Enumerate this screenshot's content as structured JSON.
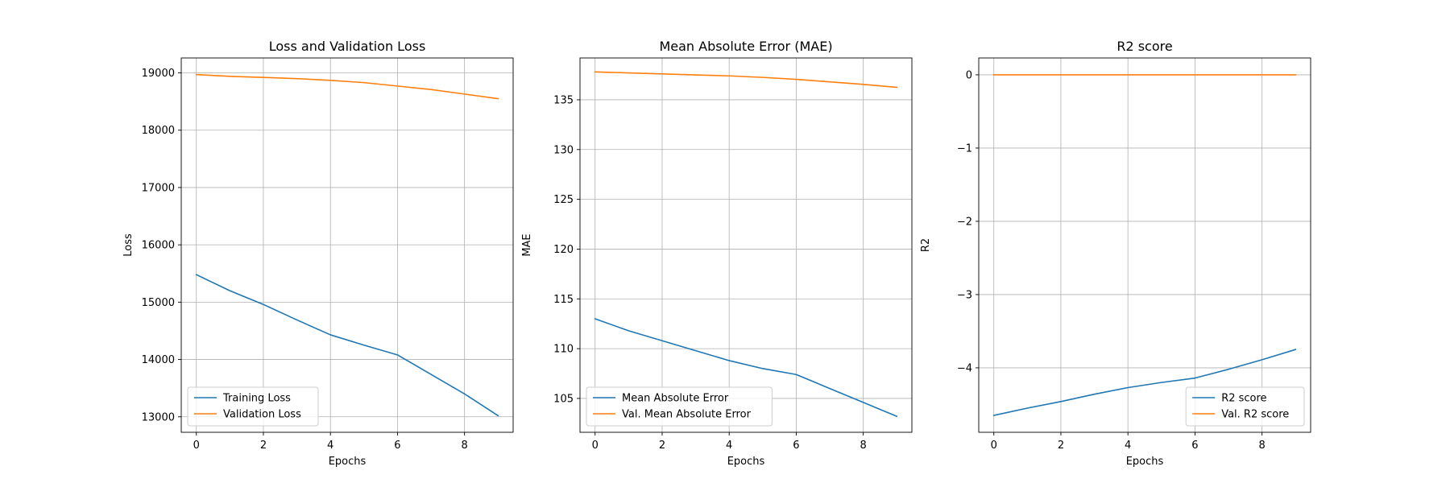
{
  "chart_data": [
    {
      "type": "line",
      "title": "Loss and Validation Loss",
      "xlabel": "Epochs",
      "ylabel": "Loss",
      "xlim": [
        -0.45,
        9.45
      ],
      "ylim": [
        12730,
        19260
      ],
      "xticks": [
        0,
        2,
        4,
        6,
        8
      ],
      "yticks": [
        13000,
        14000,
        15000,
        16000,
        17000,
        18000,
        19000
      ],
      "grid": true,
      "legend": "lower-left",
      "x": [
        0,
        1,
        2,
        3,
        4,
        5,
        6,
        7,
        8,
        9
      ],
      "series": [
        {
          "name": "Training Loss",
          "color": "#1f77b4",
          "values": [
            15480,
            15200,
            14960,
            14690,
            14430,
            14250,
            14080,
            13740,
            13400,
            13020
          ]
        },
        {
          "name": "Validation Loss",
          "color": "#ff7f0e",
          "values": [
            18970,
            18940,
            18920,
            18900,
            18870,
            18830,
            18770,
            18710,
            18630,
            18550
          ]
        }
      ]
    },
    {
      "type": "line",
      "title": "Mean Absolute Error (MAE)",
      "xlabel": "Epochs",
      "ylabel": "MAE",
      "xlim": [
        -0.45,
        9.45
      ],
      "ylim": [
        101.6,
        139.2
      ],
      "xticks": [
        0,
        2,
        4,
        6,
        8
      ],
      "yticks": [
        105,
        110,
        115,
        120,
        125,
        130,
        135
      ],
      "grid": true,
      "legend": "lower-left",
      "x": [
        0,
        1,
        2,
        3,
        4,
        5,
        6,
        7,
        8,
        9
      ],
      "series": [
        {
          "name": "Mean Absolute Error",
          "color": "#1f77b4",
          "values": [
            113.0,
            111.8,
            110.8,
            109.8,
            108.8,
            108.0,
            107.4,
            106.0,
            104.6,
            103.2
          ]
        },
        {
          "name": "Val. Mean Absolute Error",
          "color": "#ff7f0e",
          "values": [
            137.8,
            137.7,
            137.6,
            137.5,
            137.4,
            137.25,
            137.05,
            136.8,
            136.55,
            136.25
          ]
        }
      ]
    },
    {
      "type": "line",
      "title": "R2 score",
      "xlabel": "Epochs",
      "ylabel": "R2",
      "xlim": [
        -0.45,
        9.45
      ],
      "ylim": [
        -4.88,
        0.23
      ],
      "xticks": [
        0,
        2,
        4,
        6,
        8
      ],
      "yticks": [
        0,
        -1,
        -2,
        -3,
        -4
      ],
      "ytick_labels": [
        "0",
        "−1",
        "−2",
        "−3",
        "−4"
      ],
      "grid": true,
      "legend": "lower-right",
      "x": [
        0,
        1,
        2,
        3,
        4,
        5,
        6,
        7,
        8,
        9
      ],
      "series": [
        {
          "name": "R2 score",
          "color": "#1f77b4",
          "values": [
            -4.65,
            -4.55,
            -4.46,
            -4.36,
            -4.27,
            -4.2,
            -4.14,
            -4.02,
            -3.89,
            -3.75
          ]
        },
        {
          "name": "Val. R2 score",
          "color": "#ff7f0e",
          "values": [
            0.0,
            0.0,
            0.0,
            0.0,
            0.0,
            0.0,
            0.0,
            0.0,
            0.0,
            0.0
          ]
        }
      ]
    }
  ]
}
